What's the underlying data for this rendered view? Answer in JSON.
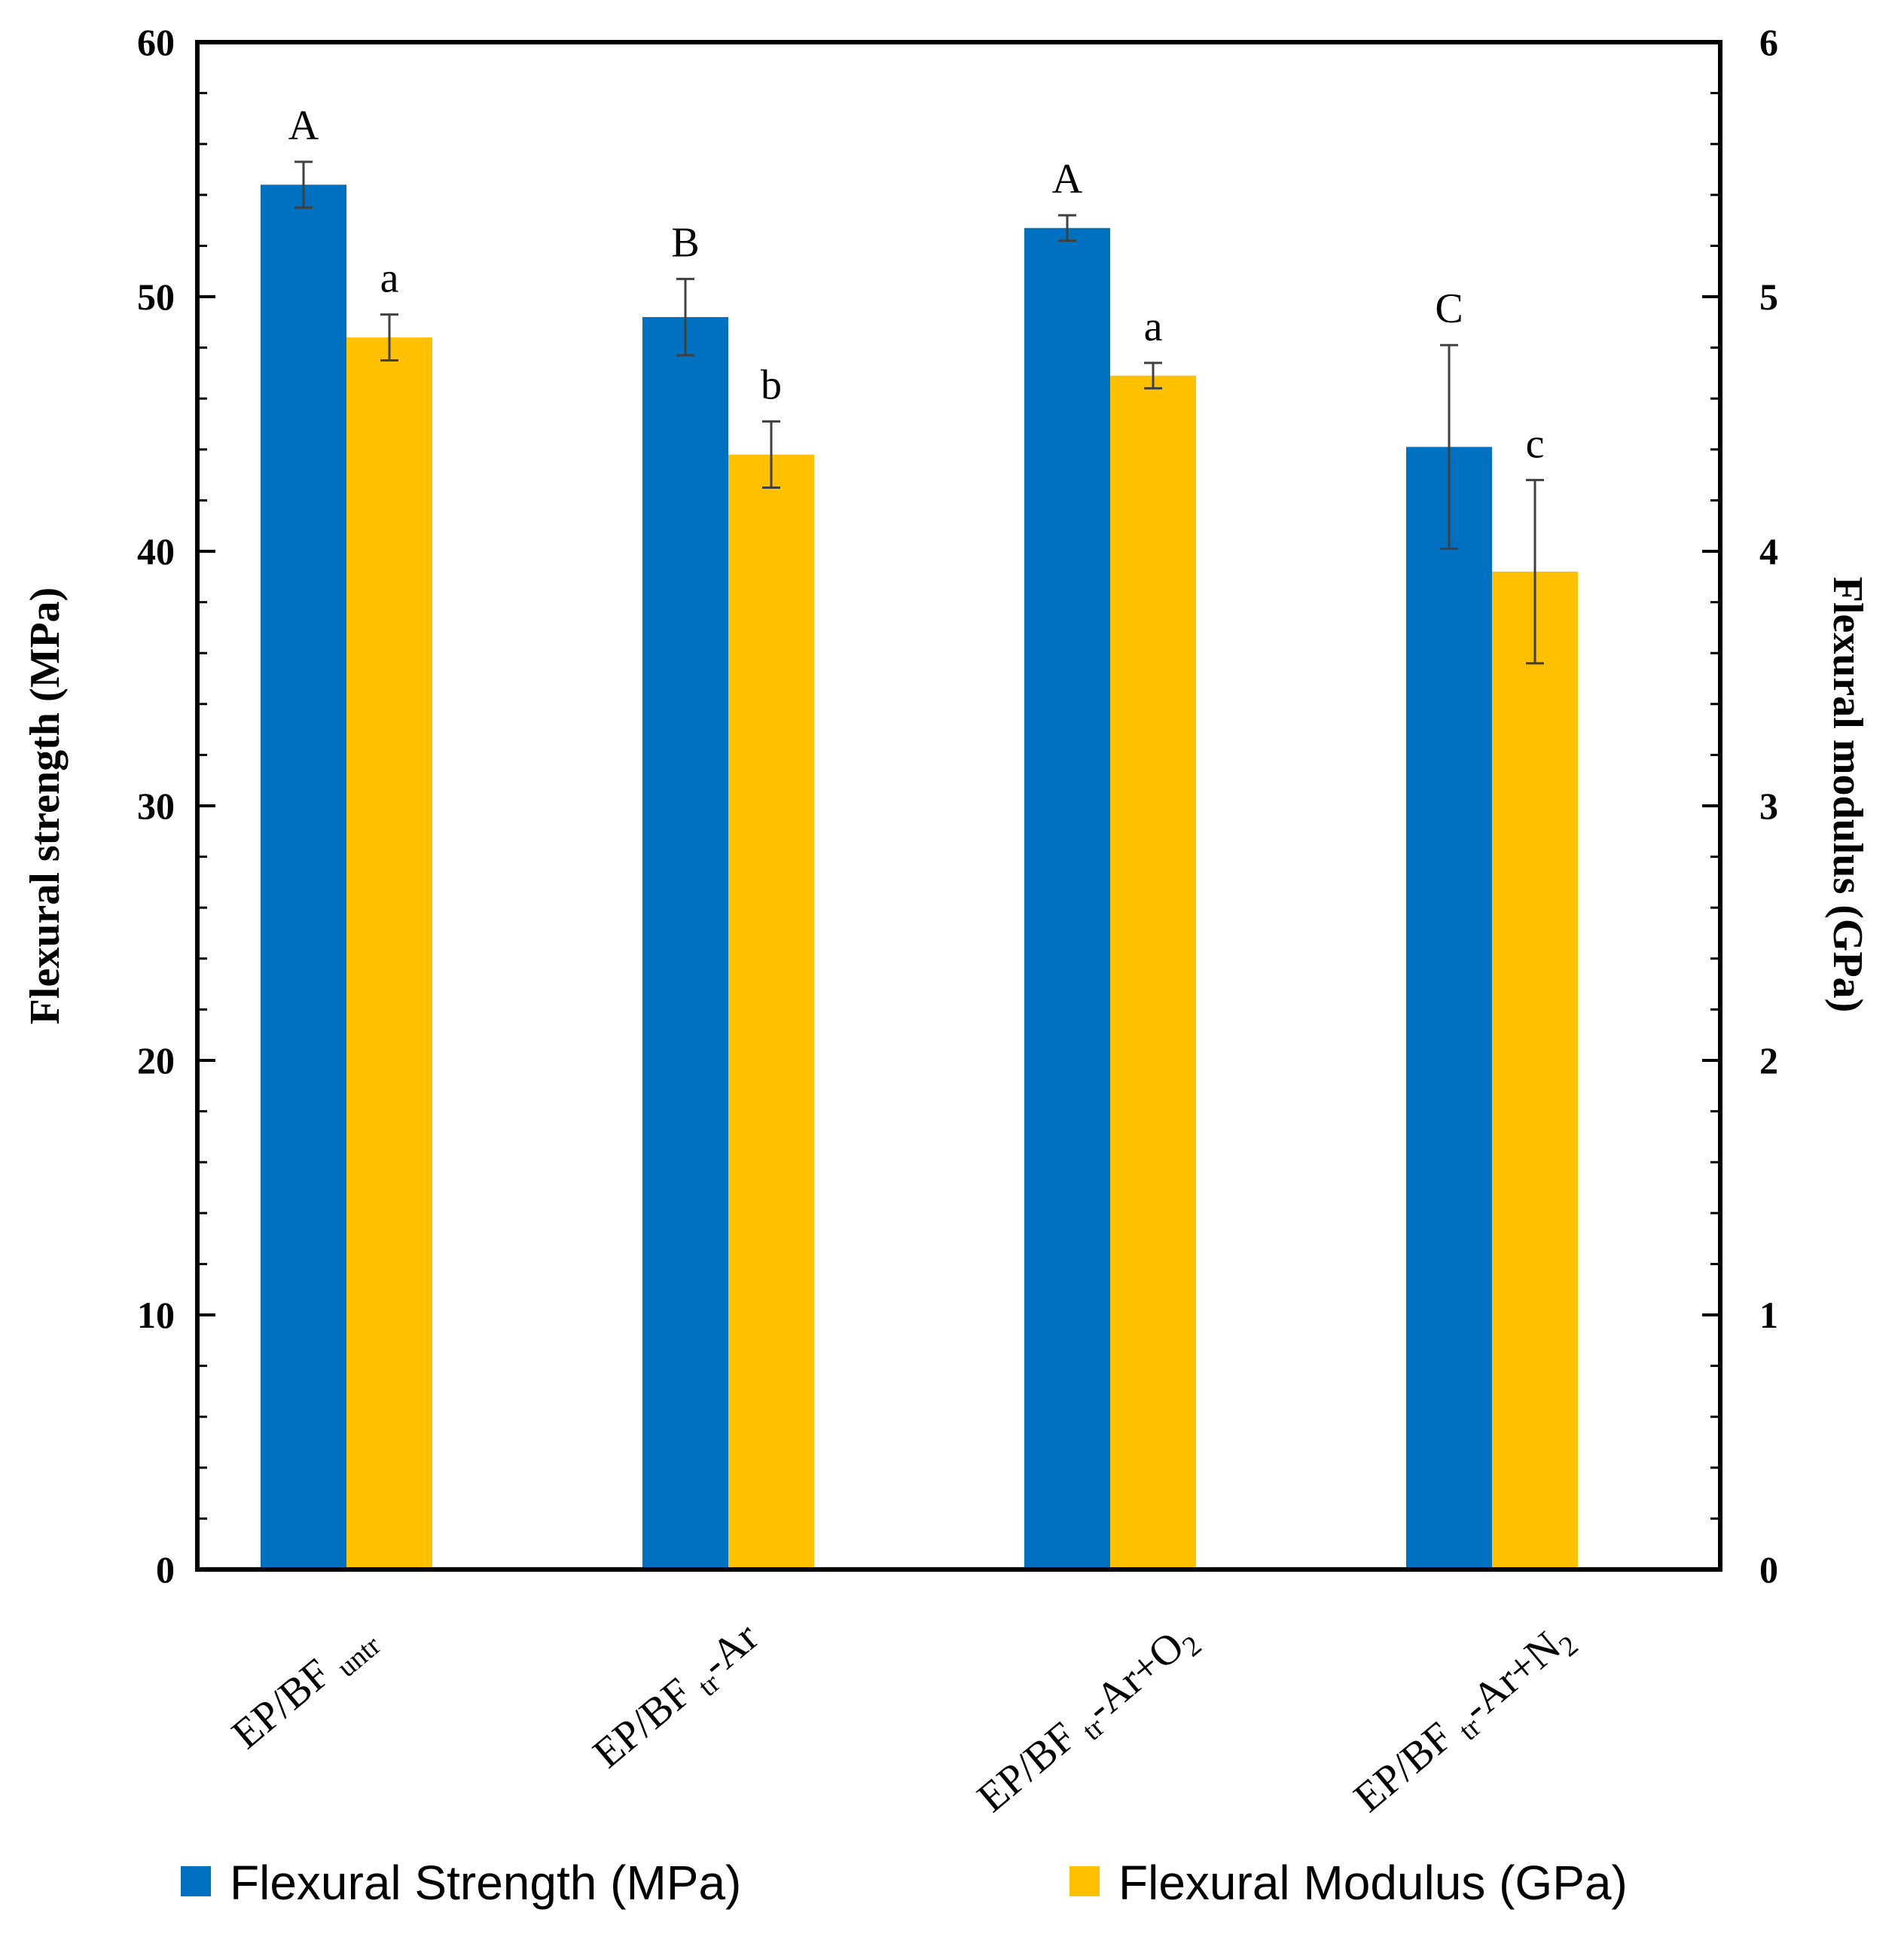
{
  "chart_data": {
    "type": "bar",
    "categories": [
      {
        "base": "EP/BF",
        "sub": "untr",
        "suffix": "",
        "suffix_sub": ""
      },
      {
        "base": "EP/BF",
        "sub": "tr",
        "suffix": "-Ar",
        "suffix_sub": ""
      },
      {
        "base": "EP/BF",
        "sub": "tr",
        "suffix": "-Ar+O",
        "suffix_sub": "2"
      },
      {
        "base": "EP/BF",
        "sub": "tr",
        "suffix": "-Ar+N",
        "suffix_sub": "2"
      }
    ],
    "series": [
      {
        "name": "Flexural Strength (MPa)",
        "axis": "left",
        "color": "#0070C0",
        "values": [
          54.4,
          49.2,
          52.7,
          44.1
        ],
        "errors": [
          0.9,
          1.5,
          0.5,
          4.0
        ],
        "significance": [
          "A",
          "B",
          "A",
          "C"
        ]
      },
      {
        "name": "Flexural Modulus (GPa)",
        "axis": "right",
        "color": "#FFC000",
        "values": [
          4.84,
          4.38,
          4.69,
          3.92
        ],
        "errors": [
          0.09,
          0.13,
          0.05,
          0.36
        ],
        "significance": [
          "a",
          "b",
          "a",
          "c"
        ]
      }
    ],
    "ylabel": "Flexural strength (MPa)",
    "y2label": "Flexural modulus (GPa)",
    "ylim": [
      0,
      60
    ],
    "y2lim": [
      0,
      6
    ],
    "yticks": [
      0,
      10,
      20,
      30,
      40,
      50,
      60
    ],
    "y2ticks": [
      0,
      1,
      2,
      3,
      4,
      5,
      6
    ],
    "legend_position": "bottom"
  }
}
